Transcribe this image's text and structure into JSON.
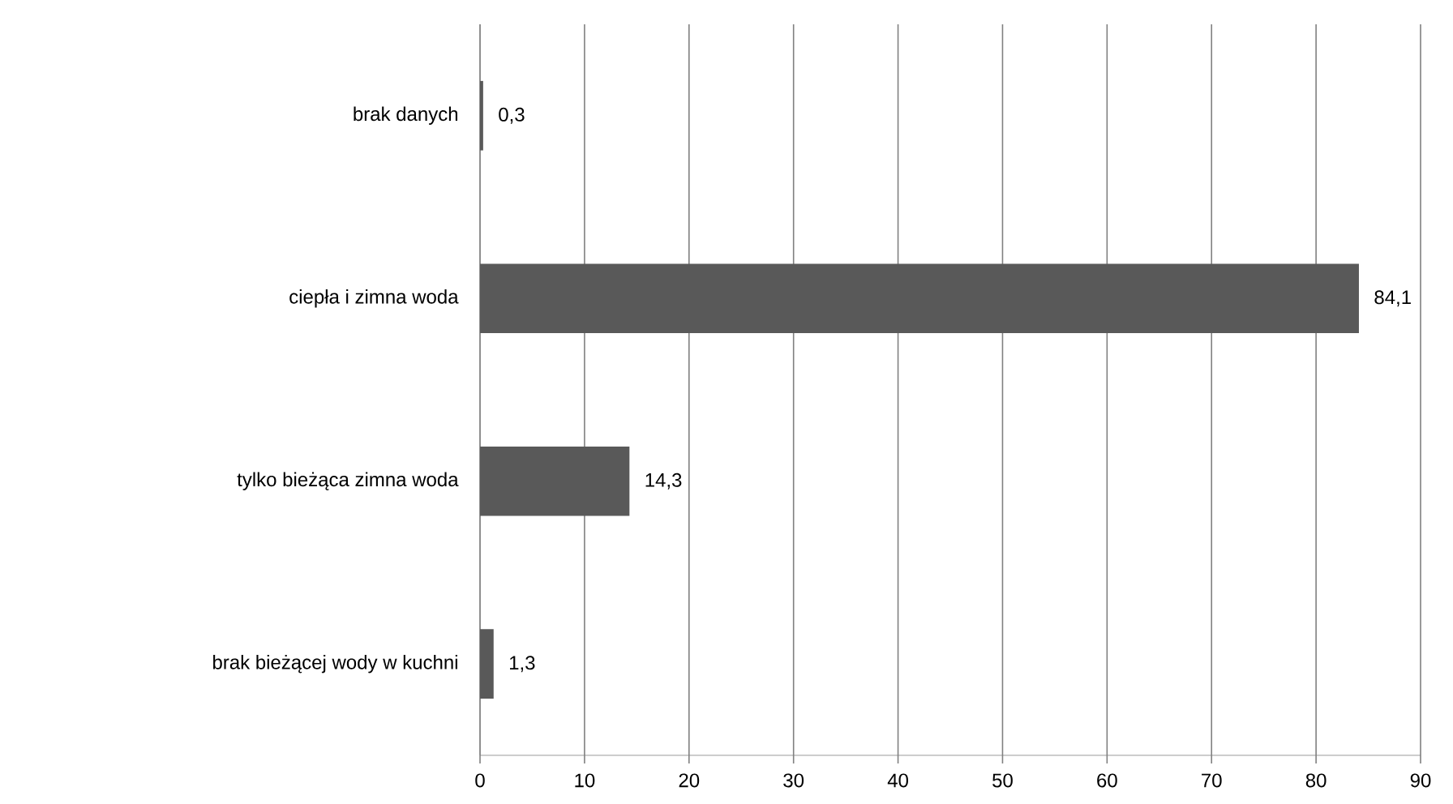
{
  "chart_data": {
    "type": "bar",
    "orientation": "horizontal",
    "categories": [
      "brak danych",
      "ciepła i zimna woda",
      "tylko bieżąca zimna woda",
      "brak bieżącej wody w kuchni"
    ],
    "values": [
      0.3,
      84.1,
      14.3,
      1.3
    ],
    "value_labels": [
      "0,3",
      "84,1",
      "14,3",
      "1,3"
    ],
    "color": "#595959",
    "xlim": [
      0,
      90
    ],
    "xticks": [
      0,
      10,
      20,
      30,
      40,
      50,
      60,
      70,
      80,
      90
    ],
    "grid": "x"
  }
}
